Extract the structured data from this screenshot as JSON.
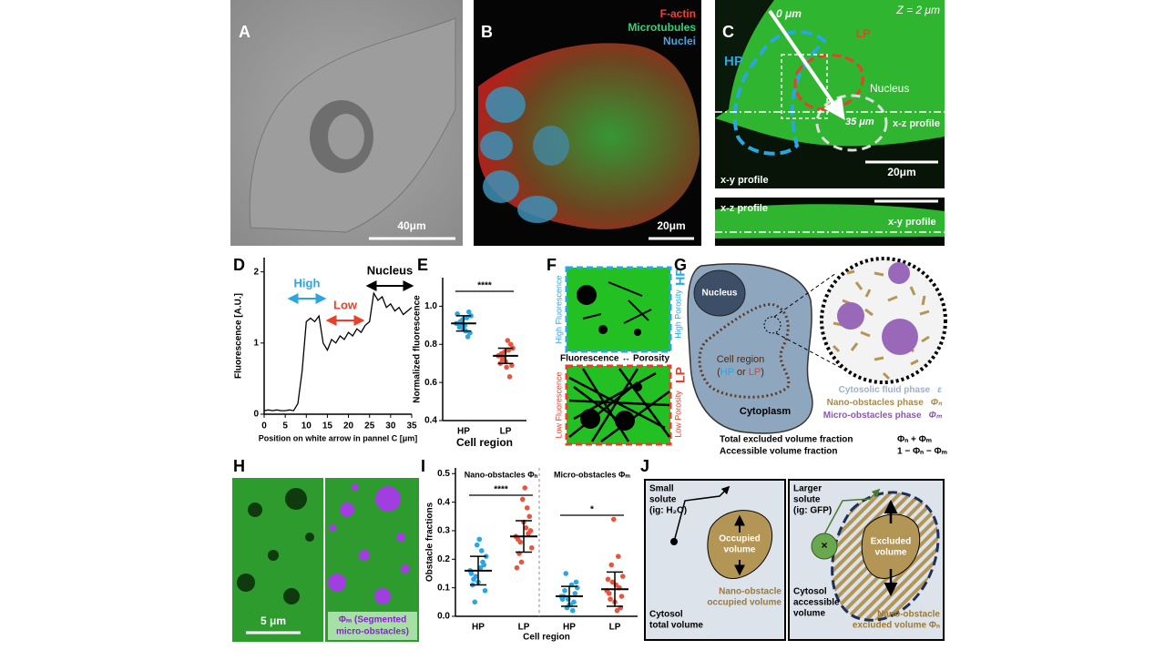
{
  "figure": {
    "panel_labels": [
      "A",
      "B",
      "C",
      "D",
      "E",
      "F",
      "G",
      "H",
      "I",
      "J"
    ],
    "A": {
      "scale_bar": "40μm"
    },
    "B": {
      "channels": [
        {
          "name": "F-actin",
          "color": "#ff3b30"
        },
        {
          "name": "Microtubules",
          "color": "#33d17a"
        },
        {
          "name": "Nuclei",
          "color": "#4aa3df"
        }
      ],
      "scale_bar": "20μm"
    },
    "C": {
      "start": "0 μm",
      "end": "35 μm",
      "lp": "LP",
      "hp": "HP",
      "z": "Z = 2 μm",
      "nucleus": "Nucleus",
      "xz_marker": "x-z profile",
      "xy_caption": "x-y profile",
      "scale_bar": "20μm",
      "strip_caption": "x-z profile",
      "strip_marker": "x-y profile"
    },
    "F": {
      "hp_side": "High Fluorescence",
      "hp_porosity": "High Porosity",
      "hp": "HP",
      "relation": "Fluorescence ↔ Porosity",
      "lp_side": "Low Fluorescence",
      "lp_porosity": "Low Porosity",
      "lp": "LP"
    },
    "G": {
      "nucleus": "Nucleus",
      "cell_region": "Cell region",
      "region_open": "(",
      "hp": "HP",
      "or": " or ",
      "lp": "LP",
      "region_close": ")",
      "cytoplasm": "Cytoplasm",
      "phases": [
        {
          "name": "Cytosolic fluid phase",
          "symbol": "ε",
          "color": "#9fb0c8"
        },
        {
          "name": "Nano-obstacles phase",
          "symbol": "Φₙ",
          "color": "#a88a4a"
        },
        {
          "name": "Micro-obstacles phase",
          "symbol": "Φₘ",
          "color": "#8a5aa8"
        }
      ],
      "fractions": [
        {
          "name": "Total excluded volume fraction",
          "formula": "Φₙ + Φₘ"
        },
        {
          "name": "Accessible volume fraction",
          "formula": "1 − Φₙ − Φₘ"
        }
      ]
    },
    "H": {
      "scale_bar": "5 μm",
      "overlay": [
        "Φₘ (Segmented",
        "micro-obstacles)"
      ]
    },
    "J": {
      "left": {
        "solute": [
          "Small",
          "solute",
          "(ig: H₂O)"
        ],
        "obstacle": [
          "Occupied",
          "volume"
        ],
        "caption": [
          "Nano-obstacle",
          "occupied volume"
        ],
        "cytosol": [
          "Cytosol",
          "total volume"
        ]
      },
      "right": {
        "solute": [
          "Larger",
          "solute",
          "(ig: GFP)"
        ],
        "marker": "×",
        "obstacle": [
          "Excluded",
          "volume"
        ],
        "cytosol": [
          "Cytosol",
          "accessible",
          "volume"
        ],
        "caption": [
          "Nano-obstacle",
          "excluded volume Φₙ"
        ]
      }
    }
  },
  "chart_data": [
    {
      "type": "line",
      "x": [
        0,
        1,
        2,
        3,
        4,
        5,
        6,
        7,
        8,
        9,
        10,
        11,
        12,
        13,
        14,
        15,
        16,
        17,
        18,
        19,
        20,
        21,
        22,
        23,
        24,
        25,
        26,
        27,
        28,
        29,
        30,
        31,
        32,
        33,
        34,
        35
      ],
      "series": [
        {
          "color": "#000000",
          "values": [
            0.05,
            0.06,
            0.05,
            0.06,
            0.05,
            0.05,
            0.06,
            0.05,
            0.15,
            0.6,
            1.3,
            1.35,
            1.3,
            1.38,
            1.0,
            0.9,
            1.05,
            1.0,
            1.1,
            1.05,
            1.15,
            1.1,
            1.2,
            1.15,
            1.25,
            1.3,
            1.7,
            1.6,
            1.65,
            1.5,
            1.55,
            1.45,
            1.5,
            1.4,
            1.45,
            1.5
          ]
        }
      ],
      "xlim": [
        0,
        35
      ],
      "xticks": [
        0,
        5,
        10,
        15,
        20,
        25,
        30,
        35
      ],
      "ylim": [
        0,
        2.2
      ],
      "yticks": [
        0,
        1,
        2
      ],
      "x_label": "Position on white arrow in pannel C [μm]",
      "y_label": "Fluorescence [A.U.]",
      "annotations": [
        {
          "text": "High",
          "color": "#2aa7e1"
        },
        {
          "text": "Low",
          "color": "#e8402a"
        },
        {
          "text": "Nucleus",
          "color": "#000000"
        }
      ]
    },
    {
      "type": "strip",
      "categories": [
        "HP",
        "LP"
      ],
      "series": [
        {
          "color": "#2aa7e1",
          "values": [
            0.91,
            0.88,
            0.95,
            0.93,
            0.86,
            0.9,
            0.97,
            0.92,
            0.84,
            0.89,
            0.94,
            0.91,
            0.87,
            0.96,
            0.9
          ],
          "mean": 0.91,
          "sd": 0.04
        },
        {
          "color": "#e8553f",
          "values": [
            0.74,
            0.71,
            0.78,
            0.76,
            0.69,
            0.73,
            0.8,
            0.72,
            0.63,
            0.75,
            0.77,
            0.7,
            0.82,
            0.74,
            0.68
          ],
          "mean": 0.74,
          "sd": 0.04
        }
      ],
      "ylim": [
        0.4,
        1.15
      ],
      "yticks": [
        0.4,
        0.6,
        0.8,
        {
          "value": 1,
          "label": "1.0"
        }
      ],
      "x_label": "Cell region",
      "y_label": "Normalized fluorescence",
      "significance": [
        "****"
      ]
    },
    {
      "type": "strip",
      "groups": [
        "Nano-obstacles Φₙ",
        "Micro-obstacles Φₘ"
      ],
      "categories": [
        "HP",
        "LP",
        "HP",
        "LP"
      ],
      "series": [
        {
          "color": "#2aa7e1",
          "values": [
            0.16,
            0.12,
            0.21,
            0.25,
            0.09,
            0.14,
            0.18,
            0.05,
            0.19,
            0.13,
            0.23,
            0.11,
            0.17,
            0.15,
            0.27
          ],
          "mean": 0.16,
          "sd": 0.05
        },
        {
          "color": "#e8553f",
          "values": [
            0.28,
            0.33,
            0.24,
            0.41,
            0.3,
            0.19,
            0.35,
            0.26,
            0.29,
            0.22,
            0.38,
            0.27,
            0.31,
            0.17,
            0.45
          ],
          "mean": 0.28,
          "sd": 0.055
        },
        {
          "color": "#2aa7e1",
          "values": [
            0.07,
            0.04,
            0.1,
            0.06,
            0.12,
            0.03,
            0.08,
            0.15,
            0.05,
            0.09,
            0.02,
            0.07,
            0.11,
            0.06,
            0.04
          ],
          "mean": 0.07,
          "sd": 0.035
        },
        {
          "color": "#e8553f",
          "values": [
            0.09,
            0.05,
            0.14,
            0.34,
            0.07,
            0.12,
            0.03,
            0.18,
            0.1,
            0.06,
            0.21,
            0.08,
            0.02,
            0.13,
            0.11
          ],
          "mean": 0.095,
          "sd": 0.06
        }
      ],
      "ylim": [
        0,
        0.52
      ],
      "yticks": [
        {
          "value": 0,
          "label": "0.0"
        },
        0.1,
        0.2,
        0.3,
        0.4,
        0.5
      ],
      "x_label": "Cell region",
      "y_label": "Obstacle fractions",
      "significance": [
        "****",
        "*"
      ]
    }
  ]
}
